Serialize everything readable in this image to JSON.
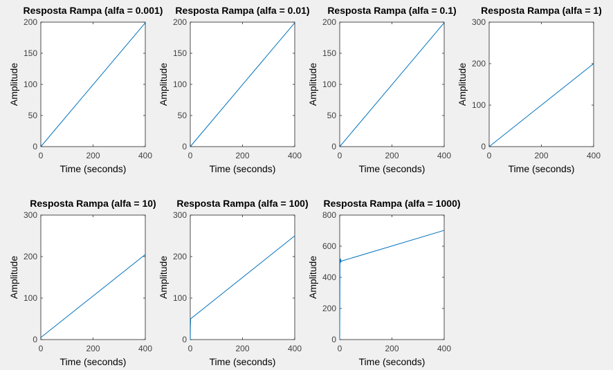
{
  "figure": {
    "background": "#f0f0f0",
    "line_color": "#0072bd",
    "axes_color": "#262626"
  },
  "chart_data": [
    {
      "type": "line",
      "title": "Resposta Rampa (alfa = 0.001)",
      "xlabel": "Time (seconds)",
      "ylabel": "Amplitude",
      "xlim": [
        0,
        400
      ],
      "ylim": [
        0,
        200
      ],
      "xticks": [
        0,
        200,
        400
      ],
      "yticks": [
        0,
        50,
        100,
        150,
        200
      ],
      "grid": false,
      "series": [
        {
          "x": [
            0,
            400
          ],
          "y": [
            0,
            199
          ]
        }
      ]
    },
    {
      "type": "line",
      "title": "Resposta Rampa (alfa = 0.01)",
      "xlabel": "Time (seconds)",
      "ylabel": "Amplitude",
      "xlim": [
        0,
        400
      ],
      "ylim": [
        0,
        200
      ],
      "xticks": [
        0,
        200,
        400
      ],
      "yticks": [
        0,
        50,
        100,
        150,
        200
      ],
      "grid": false,
      "series": [
        {
          "x": [
            0,
            400
          ],
          "y": [
            0,
            199
          ]
        }
      ]
    },
    {
      "type": "line",
      "title": "Resposta Rampa (alfa = 0.1)",
      "xlabel": "Time (seconds)",
      "ylabel": "Amplitude",
      "xlim": [
        0,
        400
      ],
      "ylim": [
        0,
        200
      ],
      "xticks": [
        0,
        200,
        400
      ],
      "yticks": [
        0,
        50,
        100,
        150,
        200
      ],
      "grid": false,
      "series": [
        {
          "x": [
            0,
            400
          ],
          "y": [
            0,
            199
          ]
        }
      ]
    },
    {
      "type": "line",
      "title": "Resposta Rampa (alfa = 1)",
      "xlabel": "Time (seconds)",
      "ylabel": "Amplitude",
      "xlim": [
        0,
        400
      ],
      "ylim": [
        0,
        300
      ],
      "xticks": [
        0,
        200,
        400
      ],
      "yticks": [
        0,
        100,
        200,
        300
      ],
      "grid": false,
      "series": [
        {
          "x": [
            0,
            400
          ],
          "y": [
            0,
            200
          ]
        }
      ]
    },
    {
      "type": "line",
      "title": "Resposta Rampa (alfa = 10)",
      "xlabel": "Time (seconds)",
      "ylabel": "Amplitude",
      "xlim": [
        0,
        400
      ],
      "ylim": [
        0,
        300
      ],
      "xticks": [
        0,
        200,
        400
      ],
      "yticks": [
        0,
        100,
        200,
        300
      ],
      "grid": false,
      "series": [
        {
          "x": [
            0,
            400
          ],
          "y": [
            5,
            205
          ]
        }
      ]
    },
    {
      "type": "line",
      "title": "Resposta Rampa (alfa = 100)",
      "xlabel": "Time (seconds)",
      "ylabel": "Amplitude",
      "xlim": [
        0,
        400
      ],
      "ylim": [
        0,
        300
      ],
      "xticks": [
        0,
        200,
        400
      ],
      "yticks": [
        0,
        100,
        200,
        300
      ],
      "grid": false,
      "series": [
        {
          "x": [
            0,
            0.5,
            1.5,
            400
          ],
          "y": [
            0,
            30,
            50,
            250
          ]
        }
      ]
    },
    {
      "type": "line",
      "title": "Resposta Rampa (alfa = 1000)",
      "xlabel": "Time (seconds)",
      "ylabel": "Amplitude",
      "xlim": [
        0,
        400
      ],
      "ylim": [
        0,
        800
      ],
      "xticks": [
        0,
        200,
        400
      ],
      "yticks": [
        0,
        200,
        400,
        600,
        800
      ],
      "grid": false,
      "series": [
        {
          "x": [
            0,
            1,
            2,
            3,
            5,
            8,
            400
          ],
          "y": [
            0,
            515,
            490,
            520,
            500,
            505,
            702
          ]
        }
      ]
    }
  ]
}
